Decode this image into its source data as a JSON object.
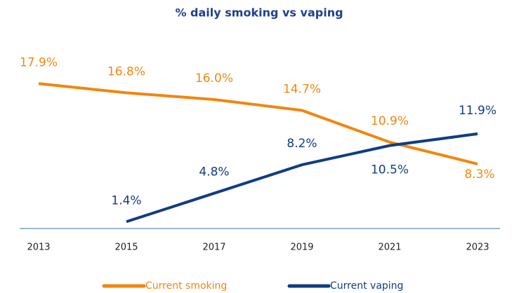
{
  "chart_data": {
    "type": "line",
    "title": "% daily smoking vs vaping",
    "x": [
      2013,
      2015,
      2017,
      2019,
      2021,
      2023
    ],
    "series": [
      {
        "name": "Current smoking",
        "color": "#f0870f",
        "values": [
          17.9,
          16.8,
          16.0,
          14.7,
          10.9,
          8.3
        ],
        "value_labels": [
          "17.9%",
          "16.8%",
          "16.0%",
          "14.7%",
          "10.9%",
          "8.3%"
        ]
      },
      {
        "name": "Current vaping",
        "color": "#103d80",
        "values": [
          null,
          1.4,
          4.8,
          8.2,
          10.5,
          11.9
        ],
        "value_labels": [
          null,
          "1.4%",
          "4.8%",
          "8.2%",
          "10.5%",
          "11.9%"
        ]
      }
    ],
    "legend": "bottom"
  }
}
